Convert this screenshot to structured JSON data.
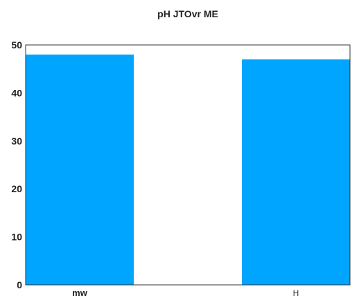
{
  "chart_data": {
    "type": "bar",
    "title": "pH JTOvr ME",
    "xlabel": "",
    "ylabel": "",
    "categories": [
      "mw",
      "H"
    ],
    "values": [
      48,
      47
    ],
    "ylim": [
      0,
      50
    ],
    "yticks": [
      0,
      10,
      20,
      30,
      40,
      50
    ],
    "grid": false,
    "bar_color": "#00a5ff"
  }
}
